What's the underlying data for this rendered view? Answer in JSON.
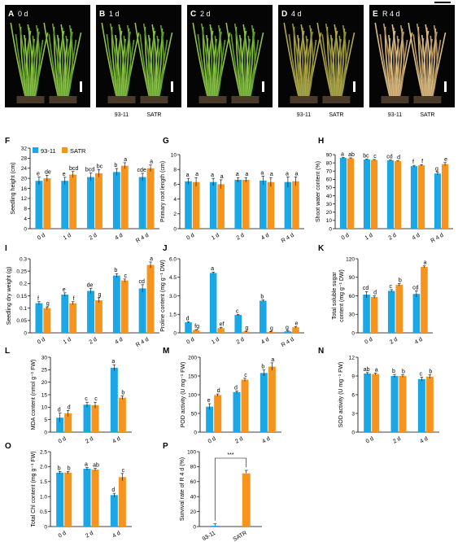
{
  "colors": {
    "s1": "#1aa7e6",
    "s2": "#f7941d"
  },
  "legend": {
    "s1": "93-11",
    "s2": "SATR"
  },
  "photos": [
    {
      "letter": "A",
      "title": "0 d",
      "tone": "green",
      "labels": []
    },
    {
      "letter": "B",
      "title": "1 d",
      "tone": "green",
      "labels": [
        "93-11",
        "SATR"
      ]
    },
    {
      "letter": "C",
      "title": "2 d",
      "tone": "green",
      "labels": []
    },
    {
      "letter": "D",
      "title": "4 d",
      "tone": "yellow",
      "labels": [
        "93-11",
        "SATR"
      ]
    },
    {
      "letter": "E",
      "title": "R 4 d",
      "tone": "dry",
      "labels": [
        "93-11",
        "SATR"
      ]
    }
  ],
  "chart_data": [
    {
      "type": "bar",
      "panel": "F",
      "ylabel": "Seedling height (cm)",
      "ylim": [
        0,
        32
      ],
      "yticks": [
        "0",
        "4",
        "8",
        "12",
        "16",
        "20",
        "24",
        "28",
        "32"
      ],
      "categories": [
        "0 d",
        "1 d",
        "2 d",
        "4 d",
        "R 4 d"
      ],
      "series": [
        {
          "name": "93-11",
          "values": [
            19,
            19,
            20.5,
            22.5,
            20.5
          ],
          "errors": [
            1.5,
            1.4,
            1.6,
            1.4,
            1.5
          ],
          "letters": [
            "e",
            "e",
            "bcd",
            "b",
            "cde"
          ]
        },
        {
          "name": "SATR",
          "values": [
            20,
            21.5,
            22,
            25,
            24
          ],
          "errors": [
            1.2,
            1.2,
            1.5,
            1.2,
            1.3
          ],
          "letters": [
            "de",
            "bcd",
            "bc",
            "a",
            "a"
          ]
        }
      ]
    },
    {
      "type": "bar",
      "panel": "G",
      "ylabel": "Primary root length (cm)",
      "ylim": [
        0,
        10
      ],
      "yticks": [
        "0",
        "2",
        "4",
        "6",
        "8",
        "10"
      ],
      "categories": [
        "0 d",
        "1 d",
        "2 d",
        "4 d",
        "R 4 d"
      ],
      "series": [
        {
          "name": "93-11",
          "values": [
            6.4,
            6.3,
            6.6,
            6.5,
            6.3
          ],
          "errors": [
            0.4,
            0.5,
            0.3,
            0.6,
            0.7
          ],
          "letters": [
            "a",
            "a",
            "a",
            "a",
            "a"
          ]
        },
        {
          "name": "SATR",
          "values": [
            6.3,
            6.0,
            6.6,
            6.3,
            6.4
          ],
          "errors": [
            0.6,
            0.6,
            0.3,
            0.6,
            0.6
          ],
          "letters": [
            "a",
            "a",
            "a",
            "a",
            "a"
          ]
        }
      ]
    },
    {
      "type": "bar",
      "panel": "H",
      "ylabel": "Shoot water content (%)",
      "ylim": [
        0,
        90
      ],
      "yticks": [
        "0",
        "10",
        "20",
        "30",
        "40",
        "50",
        "60",
        "70",
        "80",
        "90"
      ],
      "categories": [
        "0 d",
        "1 d",
        "2 d",
        "4 d",
        "R 4 d"
      ],
      "series": [
        {
          "name": "93-11",
          "values": [
            86,
            84,
            83,
            76,
            67
          ],
          "errors": [
            0.6,
            0.6,
            0.5,
            1.0,
            1.6
          ],
          "letters": [
            "a",
            "bc",
            "cd",
            "f",
            "g"
          ]
        },
        {
          "name": "SATR",
          "values": [
            85.5,
            83.5,
            82,
            77,
            78.5
          ],
          "errors": [
            0.6,
            0.6,
            0.5,
            0.8,
            1.8
          ],
          "letters": [
            "ab",
            "c",
            "d",
            "f",
            "e"
          ]
        }
      ]
    },
    {
      "type": "bar",
      "panel": "I",
      "ylabel": "Seedling dry weight (g)",
      "ylim": [
        0,
        0.3
      ],
      "yticks": [
        "0",
        "0.05",
        "0.1",
        "0.15",
        "0.2",
        "0.25",
        "0.3"
      ],
      "categories": [
        "0 d",
        "1 d",
        "2 d",
        "4 d",
        "R 4 d"
      ],
      "series": [
        {
          "name": "93-11",
          "values": [
            0.12,
            0.155,
            0.17,
            0.232,
            0.18
          ],
          "errors": [
            0.006,
            0.007,
            0.01,
            0.008,
            0.015
          ],
          "letters": [
            "f",
            "e",
            "de",
            "b",
            "cd"
          ]
        },
        {
          "name": "SATR",
          "values": [
            0.1,
            0.12,
            0.132,
            0.212,
            0.275
          ],
          "errors": [
            0.005,
            0.006,
            0.01,
            0.006,
            0.012
          ],
          "letters": [
            "g",
            "f",
            "g",
            "c",
            "a"
          ]
        }
      ]
    },
    {
      "type": "bar",
      "panel": "J",
      "ylabel": "Proline content (mg g⁻¹ DW)",
      "ylim": [
        0,
        6
      ],
      "yticks": [
        "0",
        "1.5",
        "3.0",
        "4.5",
        "6.0"
      ],
      "categories": [
        "0 d",
        "1 d",
        "2 d",
        "4 d",
        "R 4 d"
      ],
      "series": [
        {
          "name": "93-11",
          "values": [
            0.85,
            4.85,
            1.45,
            2.6,
            0.12
          ],
          "errors": [
            0.05,
            0.08,
            0.05,
            0.06,
            0.03
          ],
          "letters": [
            "d",
            "a",
            "c",
            "b",
            "g"
          ]
        },
        {
          "name": "SATR",
          "values": [
            0.22,
            0.38,
            0.1,
            0.08,
            0.45
          ],
          "errors": [
            0.04,
            0.05,
            0.03,
            0.03,
            0.05
          ],
          "letters": [
            "fg",
            "ef",
            "g",
            "g",
            "e"
          ]
        }
      ]
    },
    {
      "type": "bar",
      "panel": "K",
      "ylabel": "Total soluble sugar content (mg g⁻¹ DW)",
      "ylabel_lines": [
        "Total soluble sugar",
        "content (mg g⁻¹ DW)"
      ],
      "ylim": [
        0,
        120
      ],
      "yticks": [
        "0",
        "30",
        "60",
        "90",
        "120"
      ],
      "categories": [
        "0 d",
        "2 d",
        "4 d"
      ],
      "series": [
        {
          "name": "93-11",
          "values": [
            62,
            68,
            63
          ],
          "errors": [
            5,
            2,
            5
          ],
          "letters": [
            "cd",
            "c",
            "cd"
          ]
        },
        {
          "name": "SATR",
          "values": [
            58,
            78,
            107
          ],
          "errors": [
            2,
            2,
            1.5
          ],
          "letters": [
            "d",
            "b",
            "a"
          ]
        }
      ]
    },
    {
      "type": "bar",
      "panel": "L",
      "ylabel": "MDA content (nmol g⁻¹ FW)",
      "ylim": [
        0,
        30
      ],
      "yticks": [
        "0",
        "5",
        "10",
        "15",
        "20",
        "25",
        "30"
      ],
      "categories": [
        "0 d",
        "2 d",
        "4 d"
      ],
      "series": [
        {
          "name": "93-11",
          "values": [
            5.8,
            11,
            25.8
          ],
          "errors": [
            1.8,
            1.0,
            1.2
          ],
          "letters": [
            "d",
            "c",
            "a"
          ]
        },
        {
          "name": "SATR",
          "values": [
            7.5,
            10.8,
            13.8
          ],
          "errors": [
            1.2,
            1.2,
            0.7
          ],
          "letters": [
            "d",
            "c",
            "b"
          ]
        }
      ]
    },
    {
      "type": "bar",
      "panel": "M",
      "ylabel": "POD activity (U mg⁻¹ FW)",
      "ylim": [
        0,
        200
      ],
      "yticks": [
        "0",
        "50",
        "100",
        "150",
        "200"
      ],
      "categories": [
        "0 d",
        "2 d",
        "4 d"
      ],
      "series": [
        {
          "name": "93-11",
          "values": [
            68,
            107,
            158
          ],
          "errors": [
            8,
            3,
            8
          ],
          "letters": [
            "e",
            "d",
            "b"
          ]
        },
        {
          "name": "SATR",
          "values": [
            99,
            140,
            175
          ],
          "errors": [
            3,
            4,
            10
          ],
          "letters": [
            "d",
            "c",
            "a"
          ]
        }
      ]
    },
    {
      "type": "bar",
      "panel": "N",
      "ylabel": "SOD activity (U mg⁻¹ FW)",
      "ylim": [
        0,
        12
      ],
      "yticks": [
        "0",
        "3",
        "6",
        "9",
        "12"
      ],
      "categories": [
        "0 d",
        "2 d",
        "4 d"
      ],
      "series": [
        {
          "name": "93-11",
          "values": [
            9.4,
            9.0,
            8.5
          ],
          "errors": [
            0.15,
            0.25,
            0.3
          ],
          "letters": [
            "ab",
            "b",
            "c"
          ]
        },
        {
          "name": "SATR",
          "values": [
            9.3,
            9.0,
            8.9
          ],
          "errors": [
            0.15,
            0.2,
            0.3
          ],
          "letters": [
            "a",
            "b",
            "b"
          ]
        }
      ]
    },
    {
      "type": "bar",
      "panel": "O",
      "ylabel": "Total Chl content (mg g⁻¹ FW)",
      "ylim": [
        0,
        2.5
      ],
      "yticks": [
        "0",
        "0.5",
        "1.0",
        "1.5",
        "2.0",
        "2.5"
      ],
      "categories": [
        "0 d",
        "2 d",
        "4 d"
      ],
      "series": [
        {
          "name": "93-11",
          "values": [
            1.8,
            1.93,
            1.05
          ],
          "errors": [
            0.04,
            0.04,
            0.06
          ],
          "letters": [
            "b",
            "a",
            "d"
          ]
        },
        {
          "name": "SATR",
          "values": [
            1.8,
            1.9,
            1.65
          ],
          "errors": [
            0.04,
            0.04,
            0.12
          ],
          "letters": [
            "b",
            "ab",
            "c"
          ]
        }
      ]
    },
    {
      "type": "bar",
      "panel": "P",
      "ylabel": "Survival rate of R 4 d (%)",
      "ylim": [
        0,
        100
      ],
      "yticks": [
        "0",
        "20",
        "40",
        "60",
        "80",
        "100"
      ],
      "categories": [
        "93-11",
        "SATR"
      ],
      "single": true,
      "significance": "***",
      "series": [
        {
          "name": "Survival",
          "values": [
            1,
            71
          ],
          "errors": [
            2.5,
            4
          ],
          "colors": [
            "#1aa7e6",
            "#f7941d"
          ]
        }
      ]
    }
  ]
}
